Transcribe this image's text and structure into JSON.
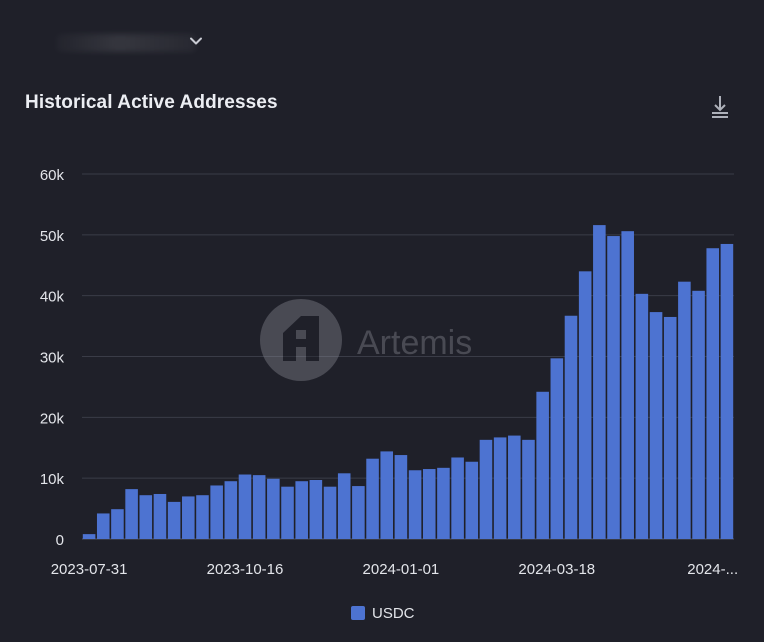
{
  "header": {
    "title": "Historical Active Addresses",
    "download_icon": "download-icon",
    "dropdown_icon": "chevron-down-icon"
  },
  "watermark": {
    "text": "Artemis"
  },
  "colors": {
    "background": "#1f2029",
    "bar": "#4d73d1",
    "grid": "#3a3c47",
    "text": "#e3e5ea"
  },
  "chart_data": {
    "type": "bar",
    "title": "Historical Active Addresses",
    "xlabel": "",
    "ylabel": "",
    "ylim": [
      0,
      60000
    ],
    "yticks": [
      0,
      10000,
      20000,
      30000,
      40000,
      50000,
      60000
    ],
    "ytick_labels": [
      "0",
      "10k",
      "20k",
      "30k",
      "40k",
      "50k",
      "60k"
    ],
    "xtick_labels": [
      "2023-07-31",
      "2023-10-16",
      "2024-01-01",
      "2024-03-18",
      "2024-..."
    ],
    "grid": true,
    "legend_position": "bottom-center",
    "series": [
      {
        "name": "USDC",
        "color": "#4d73d1",
        "values": [
          800,
          4200,
          4900,
          8200,
          7200,
          7400,
          6100,
          7000,
          7200,
          8800,
          9500,
          10600,
          10500,
          9900,
          8600,
          9500,
          9700,
          8600,
          10800,
          8700,
          13200,
          14400,
          13800,
          11300,
          11500,
          11700,
          13400,
          12700,
          16300,
          16700,
          17000,
          16300,
          24200,
          29700,
          36700,
          44000,
          51600,
          49800,
          50600,
          40300,
          37300,
          36500,
          42300,
          40800,
          47800,
          48500
        ]
      }
    ]
  }
}
